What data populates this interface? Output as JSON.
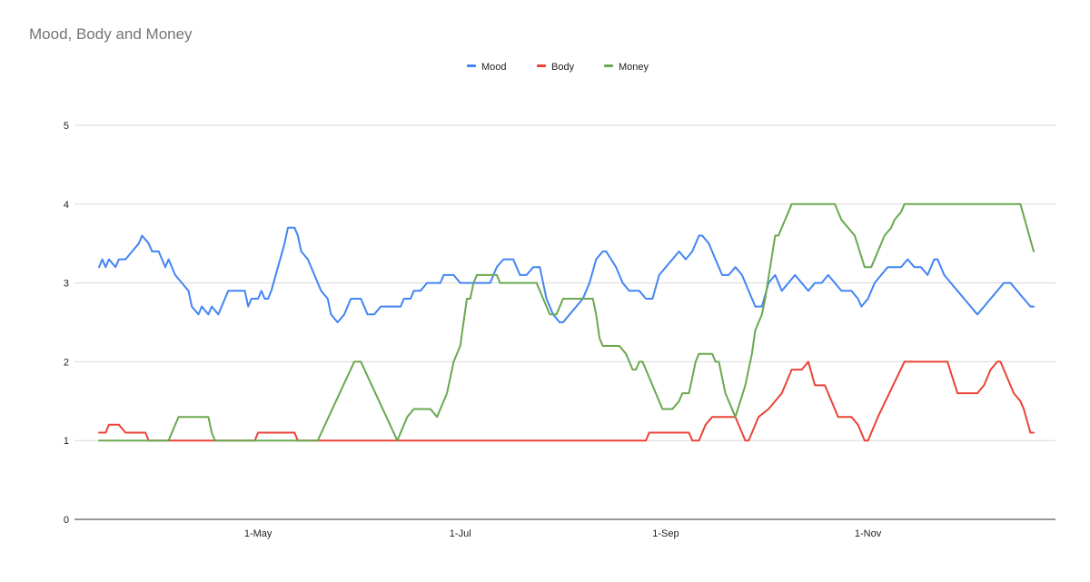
{
  "chart_data": {
    "type": "line",
    "title": "Mood, Body and Money",
    "xlabel": "",
    "ylabel": "",
    "x_range": [
      "2023-03-14",
      "2023-12-21"
    ],
    "ylim": [
      0,
      5
    ],
    "y_ticks": [
      0,
      1,
      2,
      3,
      4,
      5
    ],
    "x_ticks": [
      {
        "date": "2023-05-01",
        "label": "1-May"
      },
      {
        "date": "2023-07-01",
        "label": "1-Jul"
      },
      {
        "date": "2023-09-01",
        "label": "1-Sep"
      },
      {
        "date": "2023-11-01",
        "label": "1-Nov"
      }
    ],
    "grid": true,
    "legend_position": "top",
    "series": [
      {
        "name": "Mood",
        "color": "#4285f4",
        "points": [
          [
            "2023-03-14",
            3.2
          ],
          [
            "2023-03-15",
            3.3
          ],
          [
            "2023-03-16",
            3.2
          ],
          [
            "2023-03-17",
            3.3
          ],
          [
            "2023-03-19",
            3.2
          ],
          [
            "2023-03-20",
            3.3
          ],
          [
            "2023-03-22",
            3.3
          ],
          [
            "2023-03-24",
            3.4
          ],
          [
            "2023-03-26",
            3.5
          ],
          [
            "2023-03-27",
            3.6
          ],
          [
            "2023-03-29",
            3.5
          ],
          [
            "2023-03-30",
            3.4
          ],
          [
            "2023-04-01",
            3.4
          ],
          [
            "2023-04-03",
            3.2
          ],
          [
            "2023-04-04",
            3.3
          ],
          [
            "2023-04-06",
            3.1
          ],
          [
            "2023-04-08",
            3.0
          ],
          [
            "2023-04-10",
            2.9
          ],
          [
            "2023-04-11",
            2.7
          ],
          [
            "2023-04-13",
            2.6
          ],
          [
            "2023-04-14",
            2.7
          ],
          [
            "2023-04-16",
            2.6
          ],
          [
            "2023-04-17",
            2.7
          ],
          [
            "2023-04-19",
            2.6
          ],
          [
            "2023-04-20",
            2.7
          ],
          [
            "2023-04-22",
            2.9
          ],
          [
            "2023-04-27",
            2.9
          ],
          [
            "2023-04-28",
            2.7
          ],
          [
            "2023-04-29",
            2.8
          ],
          [
            "2023-05-01",
            2.8
          ],
          [
            "2023-05-02",
            2.9
          ],
          [
            "2023-05-03",
            2.8
          ],
          [
            "2023-05-04",
            2.8
          ],
          [
            "2023-05-05",
            2.9
          ],
          [
            "2023-05-07",
            3.2
          ],
          [
            "2023-05-09",
            3.5
          ],
          [
            "2023-05-10",
            3.7
          ],
          [
            "2023-05-12",
            3.7
          ],
          [
            "2023-05-13",
            3.6
          ],
          [
            "2023-05-14",
            3.4
          ],
          [
            "2023-05-16",
            3.3
          ],
          [
            "2023-05-18",
            3.1
          ],
          [
            "2023-05-20",
            2.9
          ],
          [
            "2023-05-22",
            2.8
          ],
          [
            "2023-05-23",
            2.6
          ],
          [
            "2023-05-25",
            2.5
          ],
          [
            "2023-05-27",
            2.6
          ],
          [
            "2023-05-29",
            2.8
          ],
          [
            "2023-06-01",
            2.8
          ],
          [
            "2023-06-03",
            2.6
          ],
          [
            "2023-06-05",
            2.6
          ],
          [
            "2023-06-07",
            2.7
          ],
          [
            "2023-06-13",
            2.7
          ],
          [
            "2023-06-14",
            2.8
          ],
          [
            "2023-06-16",
            2.8
          ],
          [
            "2023-06-17",
            2.9
          ],
          [
            "2023-06-19",
            2.9
          ],
          [
            "2023-06-21",
            3.0
          ],
          [
            "2023-06-25",
            3.0
          ],
          [
            "2023-06-26",
            3.1
          ],
          [
            "2023-06-29",
            3.1
          ],
          [
            "2023-07-01",
            3.0
          ],
          [
            "2023-07-10",
            3.0
          ],
          [
            "2023-07-12",
            3.2
          ],
          [
            "2023-07-14",
            3.3
          ],
          [
            "2023-07-17",
            3.3
          ],
          [
            "2023-07-19",
            3.1
          ],
          [
            "2023-07-21",
            3.1
          ],
          [
            "2023-07-23",
            3.2
          ],
          [
            "2023-07-25",
            3.2
          ],
          [
            "2023-07-27",
            2.8
          ],
          [
            "2023-07-29",
            2.6
          ],
          [
            "2023-07-31",
            2.5
          ],
          [
            "2023-08-01",
            2.5
          ],
          [
            "2023-08-03",
            2.6
          ],
          [
            "2023-08-05",
            2.7
          ],
          [
            "2023-08-07",
            2.8
          ],
          [
            "2023-08-09",
            3.0
          ],
          [
            "2023-08-11",
            3.3
          ],
          [
            "2023-08-13",
            3.4
          ],
          [
            "2023-08-14",
            3.4
          ],
          [
            "2023-08-17",
            3.2
          ],
          [
            "2023-08-19",
            3.0
          ],
          [
            "2023-08-21",
            2.9
          ],
          [
            "2023-08-24",
            2.9
          ],
          [
            "2023-08-26",
            2.8
          ],
          [
            "2023-08-28",
            2.8
          ],
          [
            "2023-08-30",
            3.1
          ],
          [
            "2023-09-01",
            3.2
          ],
          [
            "2023-09-03",
            3.3
          ],
          [
            "2023-09-05",
            3.4
          ],
          [
            "2023-09-07",
            3.3
          ],
          [
            "2023-09-09",
            3.4
          ],
          [
            "2023-09-11",
            3.6
          ],
          [
            "2023-09-12",
            3.6
          ],
          [
            "2023-09-14",
            3.5
          ],
          [
            "2023-09-16",
            3.3
          ],
          [
            "2023-09-18",
            3.1
          ],
          [
            "2023-09-20",
            3.1
          ],
          [
            "2023-09-22",
            3.2
          ],
          [
            "2023-09-24",
            3.1
          ],
          [
            "2023-09-26",
            2.9
          ],
          [
            "2023-09-28",
            2.7
          ],
          [
            "2023-09-30",
            2.7
          ],
          [
            "2023-10-02",
            3.0
          ],
          [
            "2023-10-04",
            3.1
          ],
          [
            "2023-10-06",
            2.9
          ],
          [
            "2023-10-08",
            3.0
          ],
          [
            "2023-10-10",
            3.1
          ],
          [
            "2023-10-12",
            3.0
          ],
          [
            "2023-10-14",
            2.9
          ],
          [
            "2023-10-16",
            3.0
          ],
          [
            "2023-10-18",
            3.0
          ],
          [
            "2023-10-20",
            3.1
          ],
          [
            "2023-10-22",
            3.0
          ],
          [
            "2023-10-24",
            2.9
          ],
          [
            "2023-10-27",
            2.9
          ],
          [
            "2023-10-29",
            2.8
          ],
          [
            "2023-10-30",
            2.7
          ],
          [
            "2023-11-01",
            2.8
          ],
          [
            "2023-11-03",
            3.0
          ],
          [
            "2023-11-05",
            3.1
          ],
          [
            "2023-11-07",
            3.2
          ],
          [
            "2023-11-11",
            3.2
          ],
          [
            "2023-11-13",
            3.3
          ],
          [
            "2023-11-15",
            3.2
          ],
          [
            "2023-11-17",
            3.2
          ],
          [
            "2023-11-19",
            3.1
          ],
          [
            "2023-11-21",
            3.3
          ],
          [
            "2023-11-22",
            3.3
          ],
          [
            "2023-11-24",
            3.1
          ],
          [
            "2023-11-26",
            3.0
          ],
          [
            "2023-11-28",
            2.9
          ],
          [
            "2023-11-30",
            2.8
          ],
          [
            "2023-12-02",
            2.7
          ],
          [
            "2023-12-04",
            2.6
          ],
          [
            "2023-12-06",
            2.7
          ],
          [
            "2023-12-08",
            2.8
          ],
          [
            "2023-12-10",
            2.9
          ],
          [
            "2023-12-12",
            3.0
          ],
          [
            "2023-12-14",
            3.0
          ],
          [
            "2023-12-16",
            2.9
          ],
          [
            "2023-12-18",
            2.8
          ],
          [
            "2023-12-20",
            2.7
          ],
          [
            "2023-12-21",
            2.7
          ]
        ]
      },
      {
        "name": "Body",
        "color": "#ea4335",
        "points": [
          [
            "2023-03-14",
            1.1
          ],
          [
            "2023-03-16",
            1.1
          ],
          [
            "2023-03-17",
            1.2
          ],
          [
            "2023-03-20",
            1.2
          ],
          [
            "2023-03-22",
            1.1
          ],
          [
            "2023-03-28",
            1.1
          ],
          [
            "2023-03-29",
            1.0
          ],
          [
            "2023-04-30",
            1.0
          ],
          [
            "2023-05-01",
            1.1
          ],
          [
            "2023-05-12",
            1.1
          ],
          [
            "2023-05-13",
            1.0
          ],
          [
            "2023-08-26",
            1.0
          ],
          [
            "2023-08-27",
            1.1
          ],
          [
            "2023-09-08",
            1.1
          ],
          [
            "2023-09-09",
            1.0
          ],
          [
            "2023-09-11",
            1.0
          ],
          [
            "2023-09-13",
            1.2
          ],
          [
            "2023-09-15",
            1.3
          ],
          [
            "2023-09-22",
            1.3
          ],
          [
            "2023-09-25",
            1.0
          ],
          [
            "2023-09-26",
            1.0
          ],
          [
            "2023-09-29",
            1.3
          ],
          [
            "2023-10-02",
            1.4
          ],
          [
            "2023-10-06",
            1.6
          ],
          [
            "2023-10-09",
            1.9
          ],
          [
            "2023-10-12",
            1.9
          ],
          [
            "2023-10-14",
            2.0
          ],
          [
            "2023-10-16",
            1.7
          ],
          [
            "2023-10-19",
            1.7
          ],
          [
            "2023-10-21",
            1.5
          ],
          [
            "2023-10-23",
            1.3
          ],
          [
            "2023-10-27",
            1.3
          ],
          [
            "2023-10-29",
            1.2
          ],
          [
            "2023-10-31",
            1.0
          ],
          [
            "2023-11-01",
            1.0
          ],
          [
            "2023-11-04",
            1.3
          ],
          [
            "2023-11-12",
            2.0
          ],
          [
            "2023-11-25",
            2.0
          ],
          [
            "2023-11-28",
            1.6
          ],
          [
            "2023-12-04",
            1.6
          ],
          [
            "2023-12-06",
            1.7
          ],
          [
            "2023-12-08",
            1.9
          ],
          [
            "2023-12-10",
            2.0
          ],
          [
            "2023-12-11",
            2.0
          ],
          [
            "2023-12-13",
            1.8
          ],
          [
            "2023-12-15",
            1.6
          ],
          [
            "2023-12-17",
            1.5
          ],
          [
            "2023-12-18",
            1.4
          ],
          [
            "2023-12-20",
            1.1
          ],
          [
            "2023-12-21",
            1.1
          ]
        ]
      },
      {
        "name": "Money",
        "color": "#6aa84f",
        "points": [
          [
            "2023-03-14",
            1.0
          ],
          [
            "2023-04-04",
            1.0
          ],
          [
            "2023-04-06",
            1.2
          ],
          [
            "2023-04-07",
            1.3
          ],
          [
            "2023-04-16",
            1.3
          ],
          [
            "2023-04-17",
            1.1
          ],
          [
            "2023-04-18",
            1.0
          ],
          [
            "2023-05-12",
            1.0
          ],
          [
            "2023-05-19",
            1.0
          ],
          [
            "2023-05-30",
            2.0
          ],
          [
            "2023-06-01",
            2.0
          ],
          [
            "2023-06-12",
            1.0
          ],
          [
            "2023-06-15",
            1.3
          ],
          [
            "2023-06-17",
            1.4
          ],
          [
            "2023-06-22",
            1.4
          ],
          [
            "2023-06-24",
            1.3
          ],
          [
            "2023-06-25",
            1.4
          ],
          [
            "2023-06-27",
            1.6
          ],
          [
            "2023-06-29",
            2.0
          ],
          [
            "2023-07-01",
            2.2
          ],
          [
            "2023-07-03",
            2.8
          ],
          [
            "2023-07-04",
            2.8
          ],
          [
            "2023-07-05",
            3.0
          ],
          [
            "2023-07-06",
            3.1
          ],
          [
            "2023-07-12",
            3.1
          ],
          [
            "2023-07-13",
            3.0
          ],
          [
            "2023-07-24",
            3.0
          ],
          [
            "2023-07-28",
            2.6
          ],
          [
            "2023-07-30",
            2.6
          ],
          [
            "2023-08-01",
            2.8
          ],
          [
            "2023-08-10",
            2.8
          ],
          [
            "2023-08-11",
            2.6
          ],
          [
            "2023-08-12",
            2.3
          ],
          [
            "2023-08-13",
            2.2
          ],
          [
            "2023-08-18",
            2.2
          ],
          [
            "2023-08-20",
            2.1
          ],
          [
            "2023-08-22",
            1.9
          ],
          [
            "2023-08-23",
            1.9
          ],
          [
            "2023-08-24",
            2.0
          ],
          [
            "2023-08-25",
            2.0
          ],
          [
            "2023-08-27",
            1.8
          ],
          [
            "2023-08-31",
            1.4
          ],
          [
            "2023-09-03",
            1.4
          ],
          [
            "2023-09-05",
            1.5
          ],
          [
            "2023-09-06",
            1.6
          ],
          [
            "2023-09-08",
            1.6
          ],
          [
            "2023-09-10",
            2.0
          ],
          [
            "2023-09-11",
            2.1
          ],
          [
            "2023-09-15",
            2.1
          ],
          [
            "2023-09-16",
            2.0
          ],
          [
            "2023-09-17",
            2.0
          ],
          [
            "2023-09-19",
            1.6
          ],
          [
            "2023-09-22",
            1.3
          ],
          [
            "2023-09-25",
            1.7
          ],
          [
            "2023-09-27",
            2.1
          ],
          [
            "2023-09-28",
            2.4
          ],
          [
            "2023-09-30",
            2.6
          ],
          [
            "2023-10-01",
            2.8
          ],
          [
            "2023-10-04",
            3.6
          ],
          [
            "2023-10-05",
            3.6
          ],
          [
            "2023-10-09",
            4.0
          ],
          [
            "2023-10-22",
            4.0
          ],
          [
            "2023-10-24",
            3.8
          ],
          [
            "2023-10-26",
            3.7
          ],
          [
            "2023-10-28",
            3.6
          ],
          [
            "2023-10-31",
            3.2
          ],
          [
            "2023-11-02",
            3.2
          ],
          [
            "2023-11-06",
            3.6
          ],
          [
            "2023-11-08",
            3.7
          ],
          [
            "2023-11-09",
            3.8
          ],
          [
            "2023-11-11",
            3.9
          ],
          [
            "2023-11-12",
            4.0
          ],
          [
            "2023-12-17",
            4.0
          ],
          [
            "2023-12-21",
            3.4
          ]
        ]
      }
    ]
  }
}
